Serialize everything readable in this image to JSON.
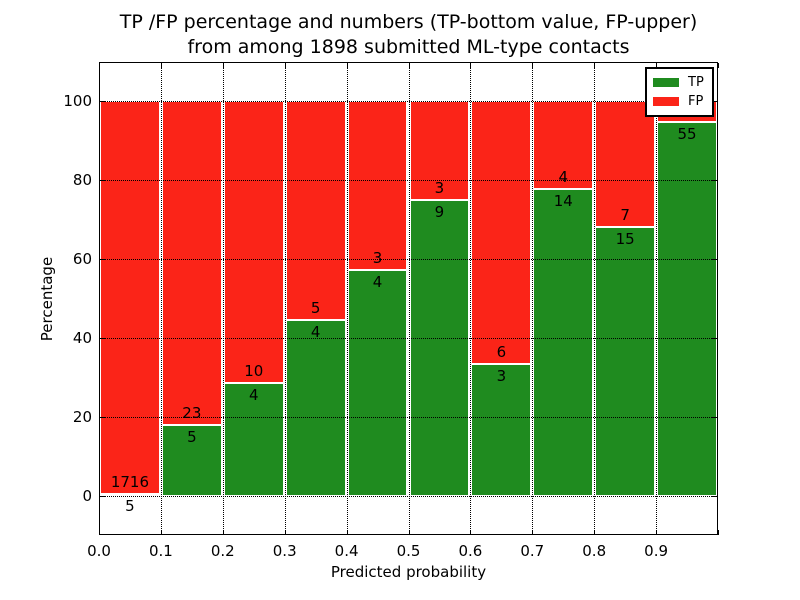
{
  "title": {
    "line1": "TP /FP percentage and numbers (TP-bottom value, FP-upper)",
    "line2": "from among 1898 submitted ML-type contacts"
  },
  "axes": {
    "xlabel": "Predicted probability",
    "ylabel": "Percentage",
    "xtick_labels": [
      "0.0",
      "0.1",
      "0.2",
      "0.3",
      "0.4",
      "0.5",
      "0.6",
      "0.7",
      "0.8",
      "0.9"
    ],
    "xtick_values": [
      0,
      0.1,
      0.2,
      0.3,
      0.4,
      0.5,
      0.6,
      0.7,
      0.8,
      0.9,
      1.0
    ],
    "ytick_labels": [
      "0",
      "20",
      "40",
      "60",
      "80",
      "100"
    ],
    "ytick_values": [
      0,
      20,
      40,
      60,
      80,
      100
    ]
  },
  "legend": {
    "items": [
      {
        "label": "TP",
        "color": "#1f8b1f"
      },
      {
        "label": "FP",
        "color": "#fb2418"
      }
    ]
  },
  "chart_data": {
    "type": "bar",
    "stacked": true,
    "orientation": "vertical",
    "title": "TP /FP percentage and numbers (TP-bottom value, FP-upper) from among 1898 submitted ML-type contacts",
    "xlabel": "Predicted probability",
    "ylabel": "Percentage",
    "xlim": [
      0,
      1
    ],
    "ylim": [
      -10,
      110
    ],
    "grid": "dotted black, horizontal at 0/20/40/60/80/100 and vertical at each 0.1",
    "legend_position": "upper right",
    "total_contacts_in_title": 1898,
    "categories": [
      "0.0-0.1",
      "0.1-0.2",
      "0.2-0.3",
      "0.3-0.4",
      "0.4-0.5",
      "0.5-0.6",
      "0.6-0.7",
      "0.7-0.8",
      "0.8-0.9",
      "0.9-1.0"
    ],
    "bins": [
      {
        "range": [
          0.0,
          0.1
        ],
        "tp_count": 5,
        "fp_count": 1716,
        "tp_pct": 0.29
      },
      {
        "range": [
          0.1,
          0.2
        ],
        "tp_count": 5,
        "fp_count": 23,
        "tp_pct": 17.86
      },
      {
        "range": [
          0.2,
          0.3
        ],
        "tp_count": 4,
        "fp_count": 10,
        "tp_pct": 28.57
      },
      {
        "range": [
          0.3,
          0.4
        ],
        "tp_count": 4,
        "fp_count": 5,
        "tp_pct": 44.44
      },
      {
        "range": [
          0.4,
          0.5
        ],
        "tp_count": 4,
        "fp_count": 3,
        "tp_pct": 57.14
      },
      {
        "range": [
          0.5,
          0.6
        ],
        "tp_count": 9,
        "fp_count": 3,
        "tp_pct": 75.0
      },
      {
        "range": [
          0.6,
          0.7
        ],
        "tp_count": 3,
        "fp_count": 6,
        "tp_pct": 33.33
      },
      {
        "range": [
          0.7,
          0.8
        ],
        "tp_count": 14,
        "fp_count": 4,
        "tp_pct": 77.78
      },
      {
        "range": [
          0.8,
          0.9
        ],
        "tp_count": 15,
        "fp_count": 7,
        "tp_pct": 68.18
      },
      {
        "range": [
          0.9,
          1.0
        ],
        "tp_count": 55,
        "fp_count": null,
        "tp_pct": 94.8
      }
    ],
    "series": [
      {
        "name": "TP",
        "color": "#1f8b1f",
        "values_pct": [
          0.29,
          17.86,
          28.57,
          44.44,
          57.14,
          75.0,
          33.33,
          77.78,
          68.18,
          94.8
        ]
      },
      {
        "name": "FP",
        "color": "#fb2418",
        "values_pct": [
          99.71,
          82.14,
          71.43,
          55.56,
          42.86,
          25.0,
          66.67,
          22.22,
          31.82,
          5.2
        ]
      }
    ]
  },
  "colors": {
    "tp_green": "#1f8b1f",
    "fp_red": "#fb2418",
    "background": "#ffffff",
    "text": "#000000",
    "grid": "#000000"
  }
}
